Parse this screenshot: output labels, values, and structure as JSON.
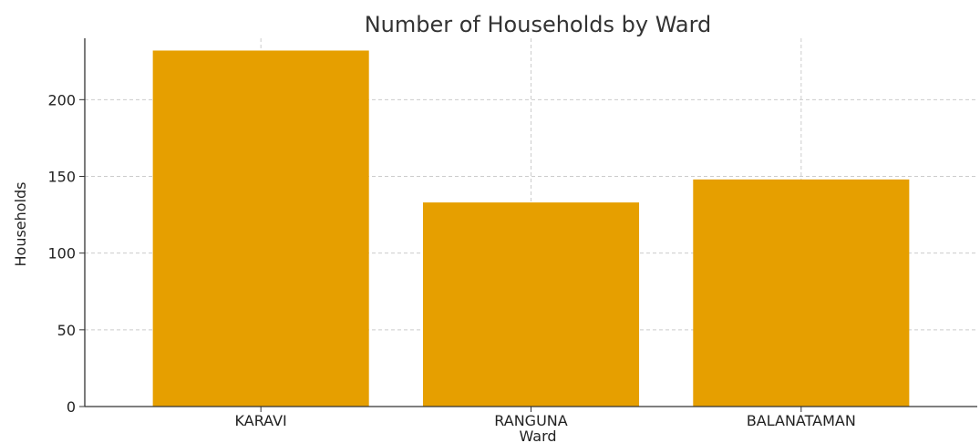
{
  "chart_data": {
    "type": "bar",
    "title": "Number of Households by Ward",
    "xlabel": "Ward",
    "ylabel": "Households",
    "categories": [
      "KARAVI",
      "RANGUNA",
      "BALANATAMAN"
    ],
    "values": [
      232,
      133,
      148
    ],
    "ylim": [
      0,
      240
    ],
    "yticks": [
      0,
      50,
      100,
      150,
      200
    ],
    "grid": true,
    "bar_color": "#E69F00"
  }
}
